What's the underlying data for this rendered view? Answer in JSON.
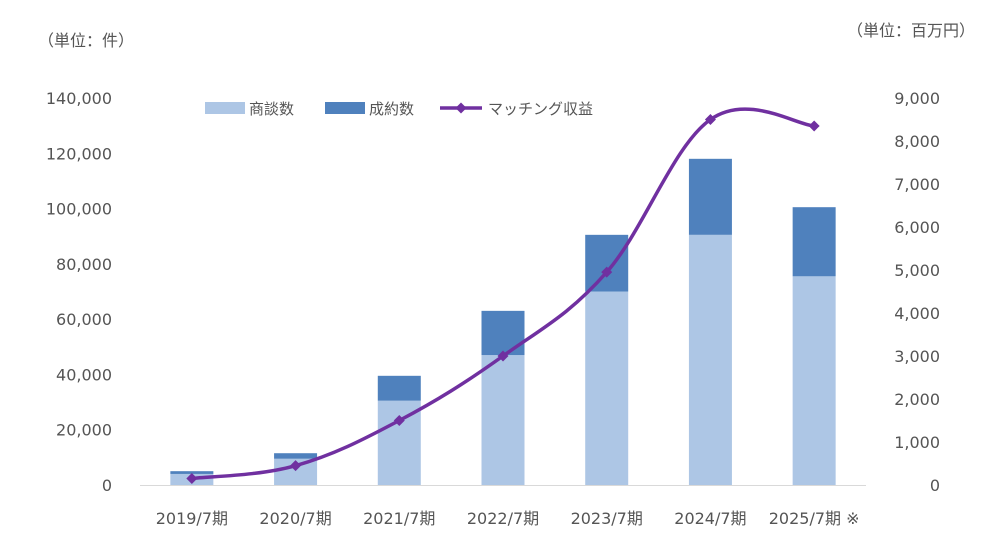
{
  "chart_data": {
    "type": "bar",
    "stacked": true,
    "categories": [
      "2019/7期",
      "2020/7期",
      "2021/7期",
      "2022/7期",
      "2023/7期",
      "2024/7期",
      "2025/7期 ※"
    ],
    "series": [
      {
        "name": "商談数",
        "type": "bar",
        "axis": "left",
        "color": "#adc6e5",
        "values": [
          4000,
          9500,
          30500,
          47000,
          70000,
          90500,
          75500
        ]
      },
      {
        "name": "成約数",
        "type": "bar",
        "axis": "left",
        "color": "#4f81bd",
        "values": [
          1000,
          2000,
          9000,
          16000,
          20500,
          27500,
          25000
        ]
      },
      {
        "name": "マッチング収益",
        "type": "line",
        "axis": "right",
        "color": "#7030a0",
        "values": [
          150,
          450,
          1500,
          3000,
          4950,
          8500,
          8350
        ]
      }
    ],
    "left_axis": {
      "unit_label": "（単位：件）",
      "ylim": [
        0,
        140000
      ],
      "ticks": [
        "0",
        "20,000",
        "40,000",
        "60,000",
        "80,000",
        "100,000",
        "120,000",
        "140,000"
      ],
      "tick_values": [
        0,
        20000,
        40000,
        60000,
        80000,
        100000,
        120000,
        140000
      ]
    },
    "right_axis": {
      "unit_label": "（単位：百万円）",
      "ylim": [
        0,
        9000
      ],
      "ticks": [
        "0",
        "1,000",
        "2,000",
        "3,000",
        "4,000",
        "5,000",
        "6,000",
        "7,000",
        "8,000",
        "9,000"
      ],
      "tick_values": [
        0,
        1000,
        2000,
        3000,
        4000,
        5000,
        6000,
        7000,
        8000,
        9000
      ]
    },
    "legend": {
      "placement": "top",
      "items": [
        "商談数",
        "成約数",
        "マッチング収益"
      ]
    },
    "grid": false
  }
}
